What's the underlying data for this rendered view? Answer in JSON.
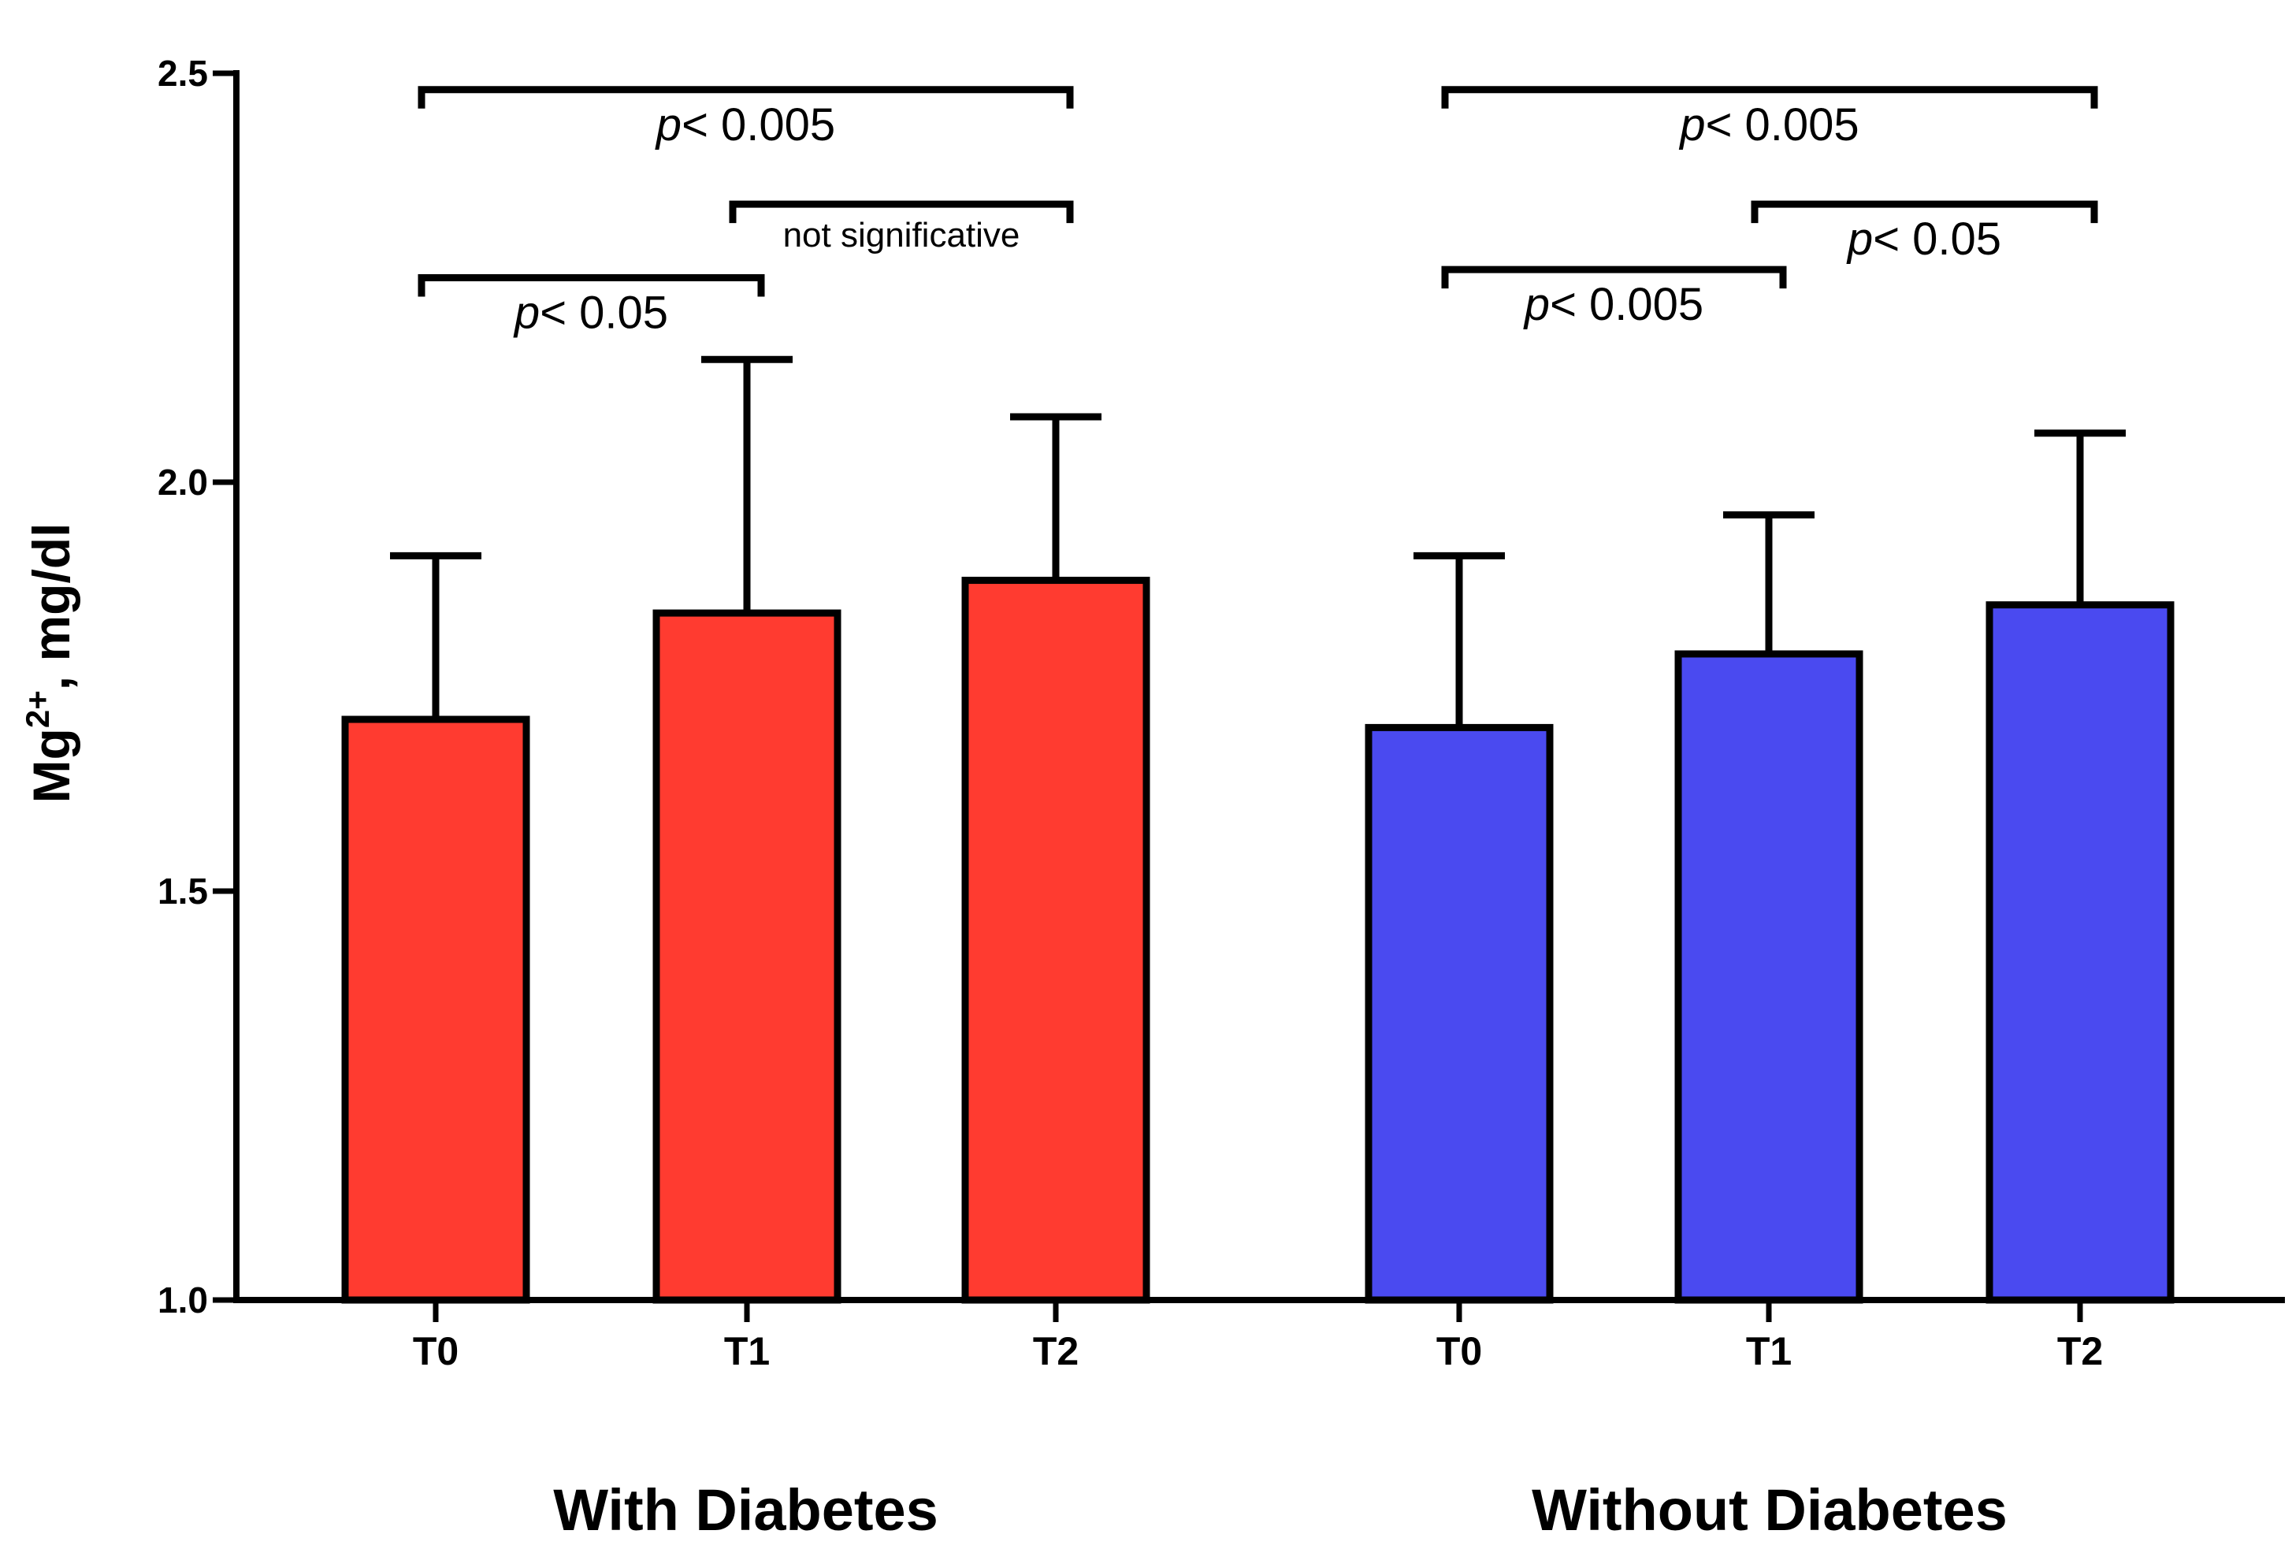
{
  "chart_data": {
    "type": "bar",
    "ylabel_main": "Mg",
    "ylabel_sup": "2+",
    "ylabel_rest": ", mg/dl",
    "ylim": [
      1.0,
      2.5
    ],
    "yticks": [
      {
        "value": 1.0,
        "label": "1.0"
      },
      {
        "value": 1.5,
        "label": "1.5"
      },
      {
        "value": 2.0,
        "label": "2.0"
      },
      {
        "value": 2.5,
        "label": "2.5"
      }
    ],
    "groups": [
      {
        "name": "With Diabetes",
        "color": "#ff3b30",
        "bars": [
          {
            "category": "T0",
            "value": 1.71,
            "error": 0.2
          },
          {
            "category": "T1",
            "value": 1.84,
            "error": 0.31
          },
          {
            "category": "T2",
            "value": 1.88,
            "error": 0.2
          }
        ],
        "comparisons": [
          {
            "from": 0,
            "to": 2,
            "label_pre": "p",
            "label_post": "< 0.005",
            "y": 2.48,
            "italic_p": true,
            "small": false
          },
          {
            "from": 1,
            "to": 2,
            "label_pre": "",
            "label_post": "not significative",
            "y": 2.34,
            "italic_p": false,
            "small": true
          },
          {
            "from": 0,
            "to": 1,
            "label_pre": "p",
            "label_post": "< 0.05",
            "y": 2.25,
            "italic_p": true,
            "small": false
          }
        ]
      },
      {
        "name": "Without Diabetes",
        "color": "#4a4af0",
        "bars": [
          {
            "category": "T0",
            "value": 1.7,
            "error": 0.21
          },
          {
            "category": "T1",
            "value": 1.79,
            "error": 0.17
          },
          {
            "category": "T2",
            "value": 1.85,
            "error": 0.21
          }
        ],
        "comparisons": [
          {
            "from": 0,
            "to": 2,
            "label_pre": "p",
            "label_post": "< 0.005",
            "y": 2.48,
            "italic_p": true,
            "small": false
          },
          {
            "from": 1,
            "to": 2,
            "label_pre": "p",
            "label_post": "< 0.05",
            "y": 2.34,
            "italic_p": true,
            "small": false
          },
          {
            "from": 0,
            "to": 1,
            "label_pre": "p",
            "label_post": "< 0.005",
            "y": 2.26,
            "italic_p": true,
            "small": false
          }
        ]
      }
    ]
  }
}
